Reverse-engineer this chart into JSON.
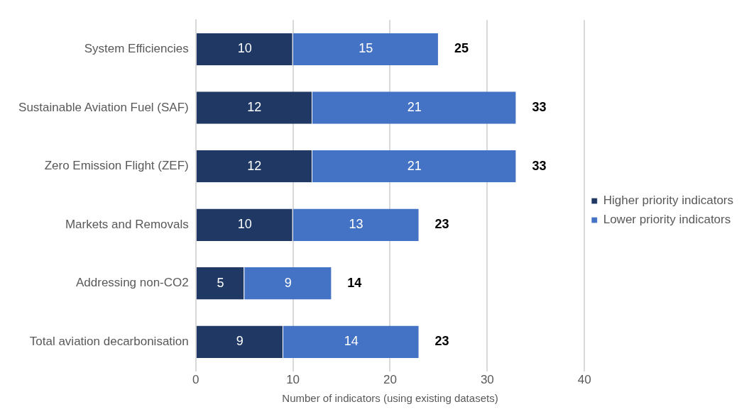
{
  "chart_data": {
    "type": "bar",
    "orientation": "horizontal",
    "stacked": true,
    "xlabel": "Number of indicators (using existing datasets)",
    "categories": [
      "System Efficiencies",
      "Sustainable Aviation Fuel (SAF)",
      "Zero Emission Flight (ZEF)",
      "Markets and Removals",
      "Addressing non-CO2",
      "Total aviation decarbonisation"
    ],
    "series": [
      {
        "name": "Higher priority indicators",
        "color": "#1f3864",
        "values": [
          10,
          12,
          12,
          10,
          5,
          9
        ]
      },
      {
        "name": "Lower priority indicators",
        "color": "#4472c4",
        "values": [
          15,
          21,
          21,
          13,
          9,
          14
        ]
      }
    ],
    "xlim": [
      0,
      40
    ],
    "xticks": [
      0,
      10,
      20,
      30,
      40
    ],
    "grid": "x",
    "legend": "right",
    "data_labels": true,
    "totals": [
      "25",
      "33",
      "33",
      "23",
      "14",
      "23"
    ]
  }
}
